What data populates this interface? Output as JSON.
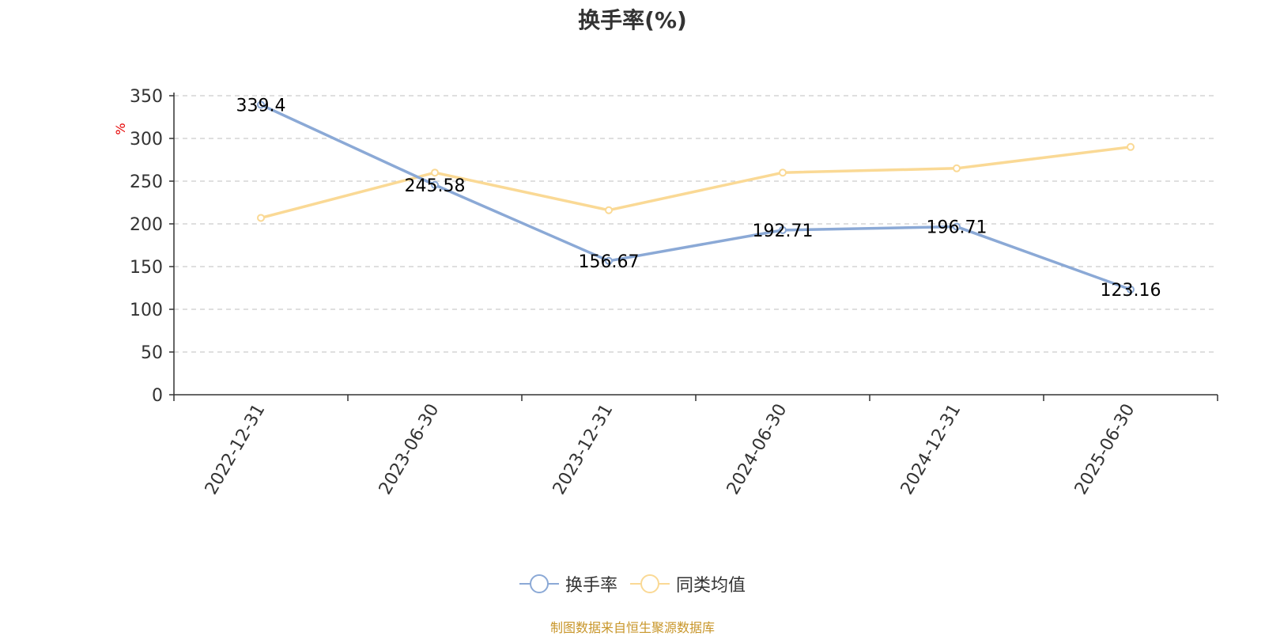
{
  "chart_data": {
    "type": "line",
    "title": "换手率(%)",
    "ylabel": "%",
    "ylim": [
      0,
      350
    ],
    "yticks": [
      0,
      50,
      100,
      150,
      200,
      250,
      300,
      350
    ],
    "categories": [
      "2022-12-31",
      "2023-06-30",
      "2023-12-31",
      "2024-06-30",
      "2024-12-31",
      "2025-06-30"
    ],
    "series": [
      {
        "name": "换手率",
        "color": "#8ba9d6",
        "values": [
          339.4,
          245.58,
          156.67,
          192.71,
          196.71,
          123.16
        ],
        "labels": [
          "339.4",
          "245.58",
          "156.67",
          "192.71",
          "196.71",
          "123.16"
        ]
      },
      {
        "name": "同类均值",
        "color": "#fad995",
        "values": [
          207,
          260,
          216,
          260,
          265,
          290
        ],
        "labels": []
      }
    ],
    "grid": true,
    "legend_position": "bottom"
  },
  "source": "制图数据来自恒生聚源数据库"
}
